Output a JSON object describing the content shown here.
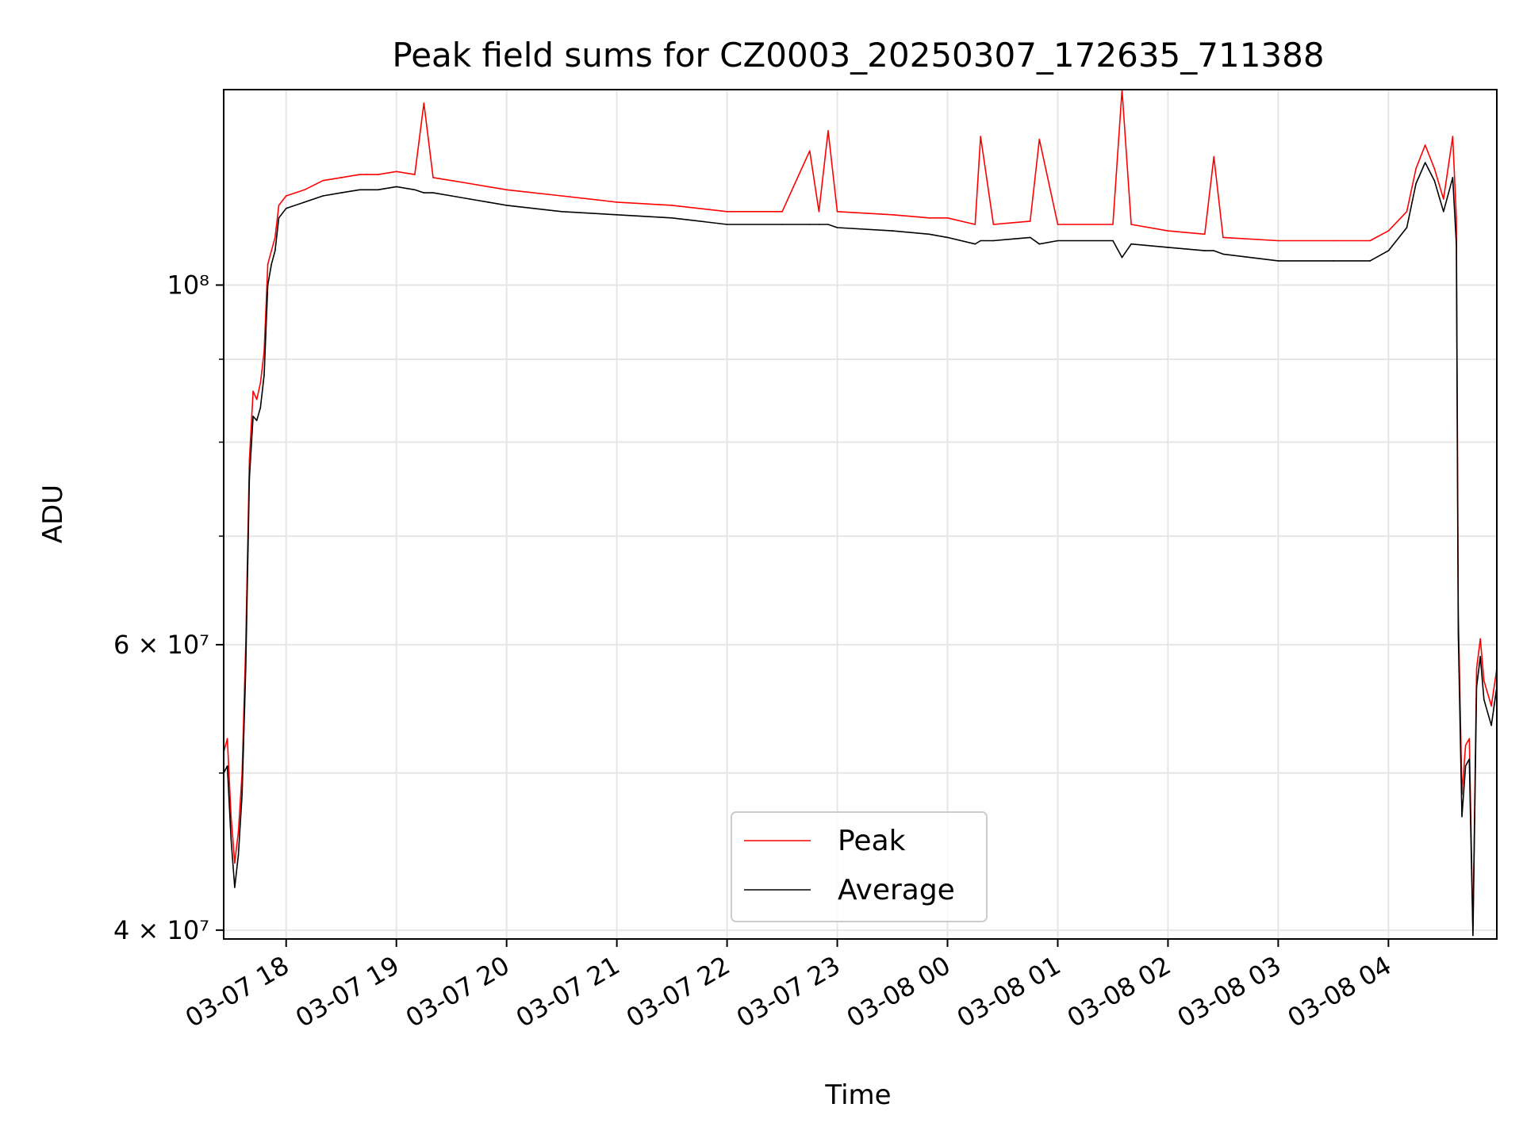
{
  "chart_data": {
    "type": "line",
    "title": "Peak field sums for CZ0003_20250307_172635_711388",
    "xlabel": "Time",
    "ylabel": "ADU",
    "y_scale": "log",
    "ylim": [
      39500000,
      132000000
    ],
    "xlim": [
      "2025-03-07 17:26",
      "2025-03-08 04:59"
    ],
    "grid": true,
    "legend_position": "lower center",
    "x_ticks": [
      {
        "value": "2025-03-07 18:00",
        "label": "03-07 18"
      },
      {
        "value": "2025-03-07 19:00",
        "label": "03-07 19"
      },
      {
        "value": "2025-03-07 20:00",
        "label": "03-07 20"
      },
      {
        "value": "2025-03-07 21:00",
        "label": "03-07 21"
      },
      {
        "value": "2025-03-07 22:00",
        "label": "03-07 22"
      },
      {
        "value": "2025-03-07 23:00",
        "label": "03-07 23"
      },
      {
        "value": "2025-03-08 00:00",
        "label": "03-08 00"
      },
      {
        "value": "2025-03-08 01:00",
        "label": "03-08 01"
      },
      {
        "value": "2025-03-08 02:00",
        "label": "03-08 02"
      },
      {
        "value": "2025-03-08 03:00",
        "label": "03-08 03"
      },
      {
        "value": "2025-03-08 04:00",
        "label": "03-08 04"
      }
    ],
    "y_ticks": [
      {
        "value": 40000000,
        "label": "4 × 10⁷"
      },
      {
        "value": 60000000,
        "label": "6 × 10⁷"
      },
      {
        "value": 100000000,
        "label": "10⁸"
      }
    ],
    "y_minor_ticks": [
      50000000,
      70000000,
      80000000,
      90000000
    ],
    "series": [
      {
        "name": "Peak",
        "color": "#ff0000",
        "points": [
          [
            "2025-03-07 17:26",
            51500000
          ],
          [
            "2025-03-07 17:28",
            52500000
          ],
          [
            "2025-03-07 17:30",
            47000000
          ],
          [
            "2025-03-07 17:32",
            44000000
          ],
          [
            "2025-03-07 17:34",
            46000000
          ],
          [
            "2025-03-07 17:36",
            50000000
          ],
          [
            "2025-03-07 17:38",
            60000000
          ],
          [
            "2025-03-07 17:40",
            78000000
          ],
          [
            "2025-03-07 17:42",
            86000000
          ],
          [
            "2025-03-07 17:44",
            85000000
          ],
          [
            "2025-03-07 17:46",
            87000000
          ],
          [
            "2025-03-07 17:48",
            91000000
          ],
          [
            "2025-03-07 17:50",
            103000000
          ],
          [
            "2025-03-07 17:52",
            105000000
          ],
          [
            "2025-03-07 17:54",
            107000000
          ],
          [
            "2025-03-07 17:56",
            112000000
          ],
          [
            "2025-03-07 18:00",
            113500000
          ],
          [
            "2025-03-07 18:10",
            114500000
          ],
          [
            "2025-03-07 18:20",
            116000000
          ],
          [
            "2025-03-07 18:30",
            116500000
          ],
          [
            "2025-03-07 18:40",
            117000000
          ],
          [
            "2025-03-07 18:50",
            117000000
          ],
          [
            "2025-03-07 19:00",
            117500000
          ],
          [
            "2025-03-07 19:10",
            117000000
          ],
          [
            "2025-03-07 19:15",
            129500000
          ],
          [
            "2025-03-07 19:20",
            116500000
          ],
          [
            "2025-03-07 19:30",
            116000000
          ],
          [
            "2025-03-07 19:40",
            115500000
          ],
          [
            "2025-03-07 19:50",
            115000000
          ],
          [
            "2025-03-07 20:00",
            114500000
          ],
          [
            "2025-03-07 20:30",
            113500000
          ],
          [
            "2025-03-07 21:00",
            112500000
          ],
          [
            "2025-03-07 21:30",
            112000000
          ],
          [
            "2025-03-07 22:00",
            111000000
          ],
          [
            "2025-03-07 22:30",
            111000000
          ],
          [
            "2025-03-07 22:45",
            121000000
          ],
          [
            "2025-03-07 22:50",
            111000000
          ],
          [
            "2025-03-07 22:55",
            124500000
          ],
          [
            "2025-03-07 23:00",
            111000000
          ],
          [
            "2025-03-07 23:30",
            110500000
          ],
          [
            "2025-03-07 23:50",
            110000000
          ],
          [
            "2025-03-08 00:00",
            110000000
          ],
          [
            "2025-03-08 00:15",
            109000000
          ],
          [
            "2025-03-08 00:18",
            123500000
          ],
          [
            "2025-03-08 00:25",
            109000000
          ],
          [
            "2025-03-08 00:45",
            109500000
          ],
          [
            "2025-03-08 00:50",
            123000000
          ],
          [
            "2025-03-08 01:00",
            109000000
          ],
          [
            "2025-03-08 01:30",
            109000000
          ],
          [
            "2025-03-08 01:35",
            132000000
          ],
          [
            "2025-03-08 01:40",
            109000000
          ],
          [
            "2025-03-08 02:00",
            108000000
          ],
          [
            "2025-03-08 02:20",
            107500000
          ],
          [
            "2025-03-08 02:25",
            120000000
          ],
          [
            "2025-03-08 02:30",
            107000000
          ],
          [
            "2025-03-08 03:00",
            106500000
          ],
          [
            "2025-03-08 03:30",
            106500000
          ],
          [
            "2025-03-08 03:50",
            106500000
          ],
          [
            "2025-03-08 04:00",
            108000000
          ],
          [
            "2025-03-08 04:10",
            111000000
          ],
          [
            "2025-03-08 04:15",
            118000000
          ],
          [
            "2025-03-08 04:20",
            122000000
          ],
          [
            "2025-03-08 04:25",
            118000000
          ],
          [
            "2025-03-08 04:30",
            113000000
          ],
          [
            "2025-03-08 04:35",
            123500000
          ],
          [
            "2025-03-08 04:37",
            110000000
          ],
          [
            "2025-03-08 04:38",
            63000000
          ],
          [
            "2025-03-08 04:40",
            48500000
          ],
          [
            "2025-03-08 04:42",
            52000000
          ],
          [
            "2025-03-08 04:44",
            52500000
          ],
          [
            "2025-03-08 04:46",
            40000000
          ],
          [
            "2025-03-08 04:48",
            58000000
          ],
          [
            "2025-03-08 04:50",
            60500000
          ],
          [
            "2025-03-08 04:52",
            57000000
          ],
          [
            "2025-03-08 04:54",
            56000000
          ],
          [
            "2025-03-08 04:56",
            55000000
          ],
          [
            "2025-03-08 04:59",
            58000000
          ]
        ]
      },
      {
        "name": "Average",
        "color": "#000000",
        "points": [
          [
            "2025-03-07 17:26",
            50000000
          ],
          [
            "2025-03-07 17:28",
            50500000
          ],
          [
            "2025-03-07 17:30",
            45500000
          ],
          [
            "2025-03-07 17:32",
            42500000
          ],
          [
            "2025-03-07 17:34",
            44500000
          ],
          [
            "2025-03-07 17:36",
            48500000
          ],
          [
            "2025-03-07 17:38",
            58000000
          ],
          [
            "2025-03-07 17:40",
            76000000
          ],
          [
            "2025-03-07 17:42",
            83000000
          ],
          [
            "2025-03-07 17:44",
            82500000
          ],
          [
            "2025-03-07 17:46",
            84000000
          ],
          [
            "2025-03-07 17:48",
            88000000
          ],
          [
            "2025-03-07 17:50",
            100000000
          ],
          [
            "2025-03-07 17:52",
            103000000
          ],
          [
            "2025-03-07 17:54",
            105000000
          ],
          [
            "2025-03-07 17:56",
            110000000
          ],
          [
            "2025-03-07 18:00",
            111500000
          ],
          [
            "2025-03-07 18:10",
            112500000
          ],
          [
            "2025-03-07 18:20",
            113500000
          ],
          [
            "2025-03-07 18:30",
            114000000
          ],
          [
            "2025-03-07 18:40",
            114500000
          ],
          [
            "2025-03-07 18:50",
            114500000
          ],
          [
            "2025-03-07 19:00",
            115000000
          ],
          [
            "2025-03-07 19:10",
            114500000
          ],
          [
            "2025-03-07 19:15",
            114000000
          ],
          [
            "2025-03-07 19:20",
            114000000
          ],
          [
            "2025-03-07 19:30",
            113500000
          ],
          [
            "2025-03-07 19:40",
            113000000
          ],
          [
            "2025-03-07 19:50",
            112500000
          ],
          [
            "2025-03-07 20:00",
            112000000
          ],
          [
            "2025-03-07 20:30",
            111000000
          ],
          [
            "2025-03-07 21:00",
            110500000
          ],
          [
            "2025-03-07 21:30",
            110000000
          ],
          [
            "2025-03-07 22:00",
            109000000
          ],
          [
            "2025-03-07 22:30",
            109000000
          ],
          [
            "2025-03-07 22:45",
            109000000
          ],
          [
            "2025-03-07 22:50",
            109000000
          ],
          [
            "2025-03-07 22:55",
            109000000
          ],
          [
            "2025-03-07 23:00",
            108500000
          ],
          [
            "2025-03-07 23:30",
            108000000
          ],
          [
            "2025-03-07 23:50",
            107500000
          ],
          [
            "2025-03-08 00:00",
            107000000
          ],
          [
            "2025-03-08 00:15",
            106000000
          ],
          [
            "2025-03-08 00:18",
            106500000
          ],
          [
            "2025-03-08 00:25",
            106500000
          ],
          [
            "2025-03-08 00:45",
            107000000
          ],
          [
            "2025-03-08 00:50",
            106000000
          ],
          [
            "2025-03-08 01:00",
            106500000
          ],
          [
            "2025-03-08 01:30",
            106500000
          ],
          [
            "2025-03-08 01:35",
            104000000
          ],
          [
            "2025-03-08 01:40",
            106000000
          ],
          [
            "2025-03-08 02:00",
            105500000
          ],
          [
            "2025-03-08 02:20",
            105000000
          ],
          [
            "2025-03-08 02:25",
            105000000
          ],
          [
            "2025-03-08 02:30",
            104500000
          ],
          [
            "2025-03-08 03:00",
            103500000
          ],
          [
            "2025-03-08 03:30",
            103500000
          ],
          [
            "2025-03-08 03:50",
            103500000
          ],
          [
            "2025-03-08 04:00",
            105000000
          ],
          [
            "2025-03-08 04:10",
            108500000
          ],
          [
            "2025-03-08 04:15",
            115500000
          ],
          [
            "2025-03-08 04:20",
            119000000
          ],
          [
            "2025-03-08 04:25",
            116000000
          ],
          [
            "2025-03-08 04:30",
            111000000
          ],
          [
            "2025-03-08 04:35",
            116500000
          ],
          [
            "2025-03-08 04:37",
            106000000
          ],
          [
            "2025-03-08 04:38",
            61000000
          ],
          [
            "2025-03-08 04:40",
            47000000
          ],
          [
            "2025-03-08 04:42",
            50500000
          ],
          [
            "2025-03-08 04:44",
            51000000
          ],
          [
            "2025-03-08 04:46",
            39700000
          ],
          [
            "2025-03-08 04:48",
            56500000
          ],
          [
            "2025-03-08 04:50",
            59000000
          ],
          [
            "2025-03-08 04:52",
            55500000
          ],
          [
            "2025-03-08 04:54",
            54500000
          ],
          [
            "2025-03-08 04:56",
            53500000
          ],
          [
            "2025-03-08 04:59",
            56500000
          ]
        ]
      }
    ]
  }
}
